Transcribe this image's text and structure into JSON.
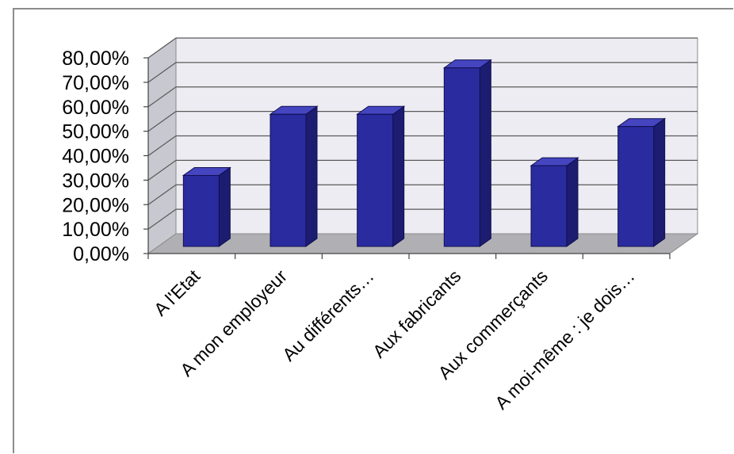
{
  "chart_data": {
    "type": "bar",
    "title": "",
    "xlabel": "",
    "ylabel": "",
    "categories": [
      "A l'Etat",
      "A mon employeur",
      "Au différents…",
      "Aux fabricants",
      "Aux commerçants",
      "A moi-même : je dois…"
    ],
    "values": [
      0.29,
      0.54,
      0.54,
      0.73,
      0.33,
      0.49
    ],
    "ylim": [
      0,
      0.8
    ],
    "yticks": [
      0,
      0.1,
      0.2,
      0.3,
      0.4,
      0.5,
      0.6,
      0.7,
      0.8
    ],
    "ytick_labels": [
      "0,00%",
      "10,00%",
      "20,00%",
      "30,00%",
      "40,00%",
      "50,00%",
      "60,00%",
      "70,00%",
      "80,00%"
    ],
    "grid": true,
    "three_d": true,
    "legend": "none",
    "colors": {
      "bar_front": "#2b2ba0",
      "bar_side": "#1c1c70",
      "bar_top": "#4545c0",
      "back_wall": "#ececf2",
      "side_wall": "#c8c8d0",
      "floor": "#b0b0b4",
      "gridline": "#5a5a5a"
    }
  }
}
